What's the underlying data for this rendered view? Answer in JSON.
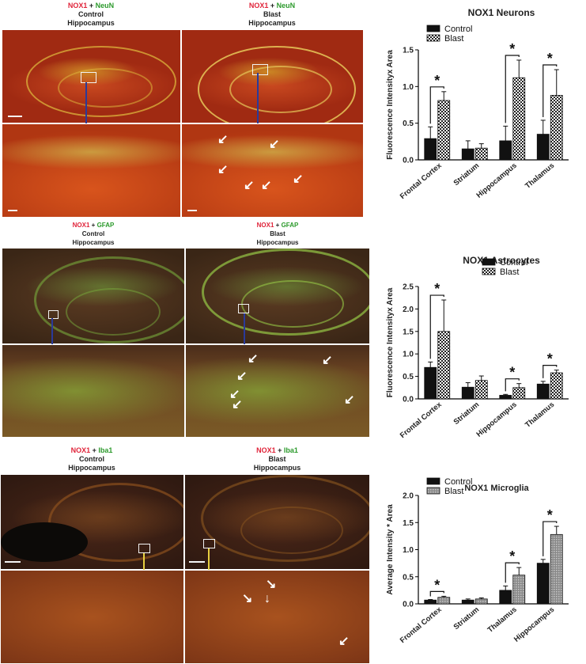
{
  "row1": {
    "left": {
      "marker1": "NOX1",
      "plus": " + ",
      "marker2": "NeuN",
      "condition": "Control",
      "region": "Hippocampus"
    },
    "right": {
      "marker1": "NOX1",
      "plus": " + ",
      "marker2": "NeuN",
      "condition": "Blast",
      "region": "Hippocampus"
    }
  },
  "row2": {
    "left": {
      "marker1": "NOX1",
      "plus": " + ",
      "marker2": "GFAP",
      "condition": "Control",
      "region": "Hippocampus"
    },
    "right": {
      "marker1": "NOX1",
      "plus": " + ",
      "marker2": "GFAP",
      "condition": "Blast",
      "region": "Hippocampus"
    }
  },
  "row3": {
    "left": {
      "marker1": "NOX1",
      "plus": " + ",
      "marker2": "Iba1",
      "condition": "Control",
      "region": "Hippocampus"
    },
    "right": {
      "marker1": "NOX1",
      "plus": " + ",
      "marker2": "Iba1",
      "condition": "Blast",
      "region": "Hippocampus"
    }
  },
  "colors": {
    "control": "#111111",
    "blast_pattern": "checkered",
    "marker_red": "#e0243a",
    "marker_green": "#2c9a2c",
    "neun_tissue": "#b8401a",
    "gfap_tissue": "#4a3220",
    "iba_tissue": "#3a2014"
  },
  "chart_data": [
    {
      "type": "bar",
      "title": "NOX1 Neurons",
      "ylabel": "Fluorescence Intensityx Area",
      "xlabel": "",
      "ylim": [
        0,
        1.5
      ],
      "yticks": [
        "0.0",
        "0.5",
        "1.0",
        "1.5"
      ],
      "categories": [
        "Frontal Cortex",
        "Striatum",
        "Hippocampus",
        "Thalamus"
      ],
      "series": [
        {
          "name": "Control",
          "values": [
            0.29,
            0.15,
            0.26,
            0.35
          ],
          "errors": [
            0.16,
            0.11,
            0.2,
            0.19
          ]
        },
        {
          "name": "Blast",
          "values": [
            0.81,
            0.16,
            1.12,
            0.88
          ],
          "errors": [
            0.12,
            0.06,
            0.24,
            0.35
          ]
        }
      ],
      "significance": [
        "*",
        "",
        "*",
        "*"
      ],
      "legend": "top-left"
    },
    {
      "type": "bar",
      "title": "NOX1 Astrocytes",
      "ylabel": "Fluorescence Intensityx Area",
      "xlabel": "",
      "ylim": [
        0,
        2.5
      ],
      "yticks": [
        "0.0",
        "0.5",
        "1.0",
        "1.5",
        "2.0",
        "2.5"
      ],
      "categories": [
        "Frontal Cortex",
        "Striatum",
        "Hippocampus",
        "Thalamus"
      ],
      "series": [
        {
          "name": "Control",
          "values": [
            0.7,
            0.26,
            0.08,
            0.33
          ],
          "errors": [
            0.12,
            0.1,
            0.02,
            0.06
          ]
        },
        {
          "name": "Blast",
          "values": [
            1.5,
            0.41,
            0.25,
            0.58
          ],
          "errors": [
            0.7,
            0.1,
            0.09,
            0.06
          ]
        }
      ],
      "significance": [
        "*",
        "",
        "*",
        "*"
      ],
      "legend": "top-right"
    },
    {
      "type": "bar",
      "title": "NOX1 Microglia",
      "ylabel": "Average Intensity * Area",
      "xlabel": "",
      "ylim": [
        0,
        2.0
      ],
      "yticks": [
        "0.0",
        "0.5",
        "1.0",
        "1.5",
        "2.0"
      ],
      "categories": [
        "Frontal Cortex",
        "Striatum",
        "Thalamus",
        "Hippocampus"
      ],
      "series": [
        {
          "name": "Control",
          "values": [
            0.07,
            0.07,
            0.25,
            0.75
          ],
          "errors": [
            0.01,
            0.02,
            0.08,
            0.07
          ]
        },
        {
          "name": "Blast",
          "values": [
            0.12,
            0.09,
            0.53,
            1.28
          ],
          "errors": [
            0.02,
            0.02,
            0.14,
            0.15
          ]
        }
      ],
      "significance": [
        "*",
        "",
        "*",
        "*"
      ],
      "legend": "top-left"
    }
  ]
}
